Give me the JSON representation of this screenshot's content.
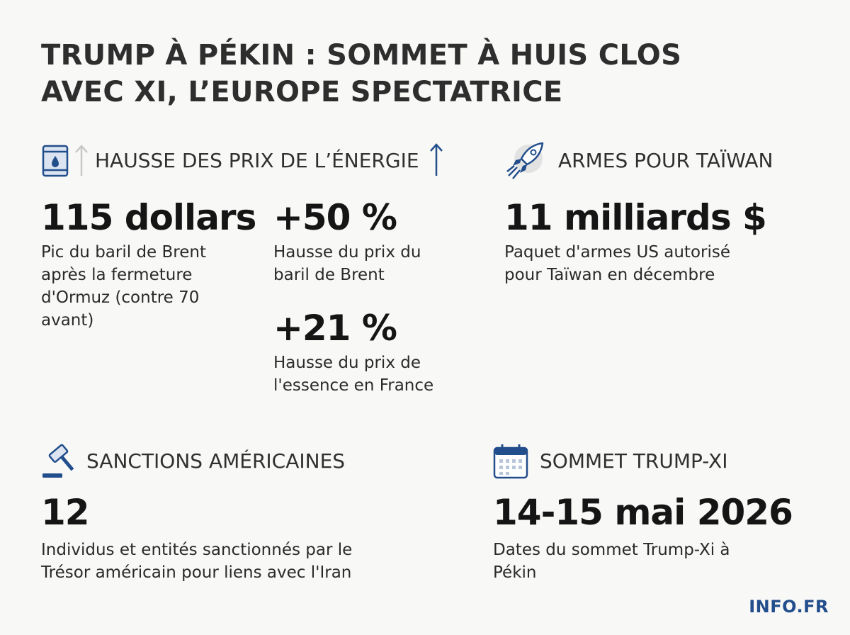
{
  "title_line1": "TRUMP À PÉKIN : SOMMET À HUIS CLOS",
  "title_line2": "AVEC XI, L’EUROPE SPECTATRICE",
  "energy": {
    "heading": "HAUSSE DES PRIX DE L’ÉNERGIE",
    "icon": "oil-barrel-icon",
    "stat1": {
      "value": "115 dollars",
      "desc_lines": [
        "Pic du baril de Brent",
        "après la fermeture",
        "d'Ormuz (contre 70",
        "avant)"
      ]
    },
    "stat2": {
      "value": "+50 %",
      "desc_lines": [
        "Hausse du prix du",
        "baril de Brent"
      ]
    },
    "stat3": {
      "value": "+21 %",
      "desc_lines": [
        "Hausse du prix de",
        "l'essence en France"
      ]
    }
  },
  "arms": {
    "heading": "ARMES POUR TAÏWAN",
    "icon": "rocket-icon",
    "stat": {
      "value": "11 milliards $",
      "desc_lines": [
        "Paquet d'armes US autorisé",
        "pour Taïwan en décembre"
      ]
    }
  },
  "sanctions": {
    "heading": "SANCTIONS AMÉRICAINES",
    "icon": "gavel-icon",
    "stat": {
      "value": "12",
      "desc_lines": [
        "Individus et entités sanctionnés par le",
        "Trésor américain pour liens avec l'Iran"
      ]
    }
  },
  "summit": {
    "heading": "SOMMET TRUMP-XI",
    "icon": "calendar-icon",
    "stat": {
      "value": "14-15 mai 2026",
      "desc_lines": [
        "Dates du sommet Trump-Xi à",
        "Pékin"
      ]
    }
  },
  "brand": "INFO.FR",
  "colors": {
    "accent": "#234e8c",
    "text": "#1c1c1c",
    "background": "#f8f8f6"
  }
}
